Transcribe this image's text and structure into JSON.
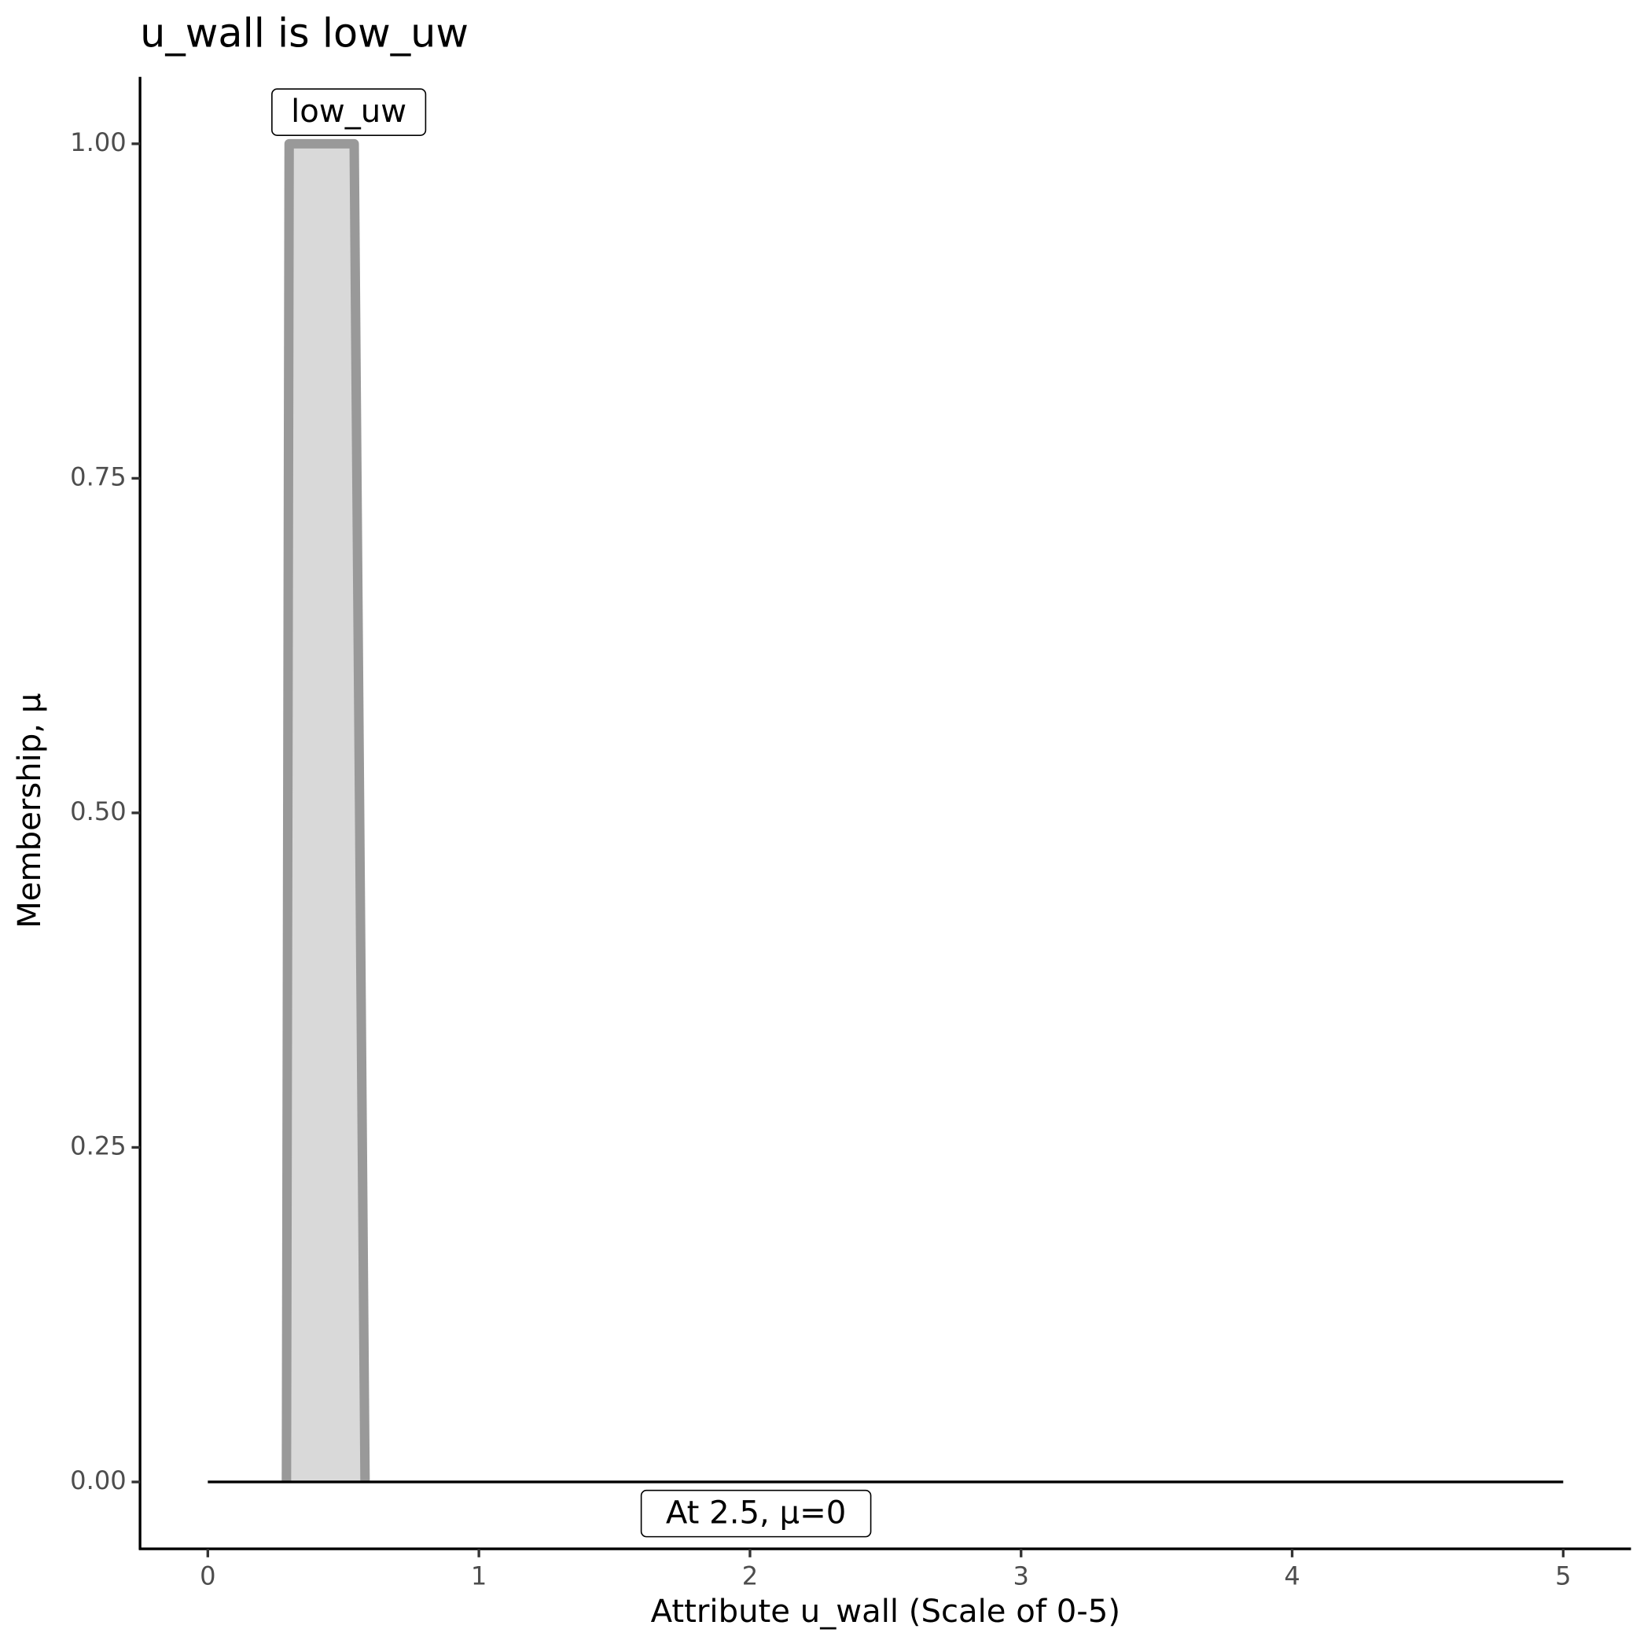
{
  "chart_data": {
    "type": "area",
    "title": "u_wall is low_uw",
    "x_label": "Attribute u_wall (Scale of 0-5)",
    "y_label": "Membership, μ",
    "series": [
      {
        "name": "low_uw",
        "color": "#999999",
        "fill": "#d9d9d9",
        "x": [
          0.29,
          0.3,
          0.54,
          0.58
        ],
        "values": [
          0,
          1,
          1,
          0
        ]
      }
    ],
    "reference_line": {
      "color": "#000000",
      "x": [
        0,
        5
      ],
      "values": [
        0,
        0
      ]
    },
    "annotations": [
      "At 2.5, μ=0"
    ],
    "xlim": [
      -0.25,
      5.25
    ],
    "ylim": [
      -0.05,
      1.05
    ],
    "xticks": [
      0,
      1,
      2,
      3,
      4,
      5
    ],
    "yticks": [
      {
        "value": 0,
        "label": "0.00"
      },
      {
        "value": 0.25,
        "label": "0.25"
      },
      {
        "value": 0.5,
        "label": "0.50"
      },
      {
        "value": 0.75,
        "label": "0.75"
      },
      {
        "value": 1,
        "label": "1.00"
      }
    ],
    "grid": false
  }
}
